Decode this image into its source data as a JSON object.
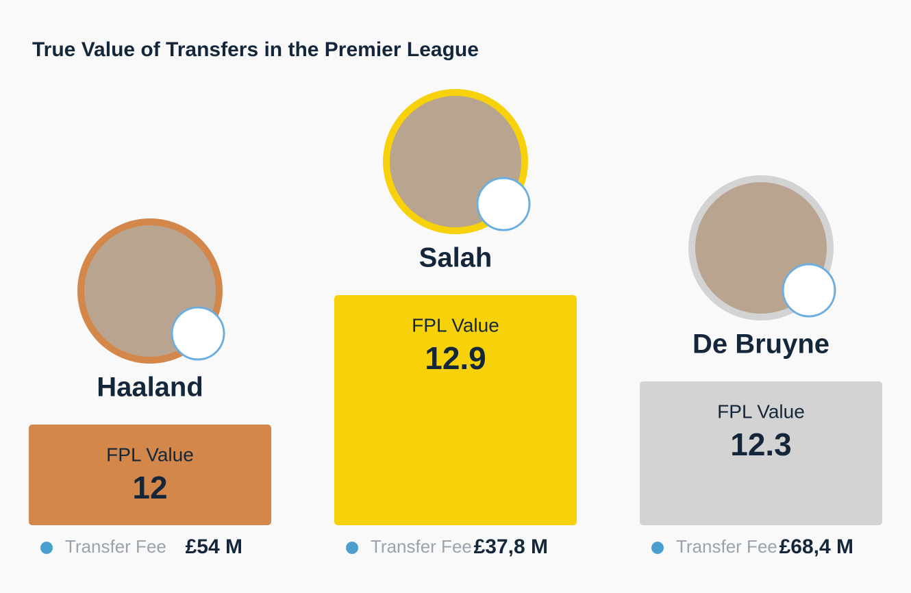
{
  "chart_data": {
    "type": "bar",
    "title": "True Value of Transfers in the Premier League",
    "categories": [
      "Haaland",
      "Salah",
      "De Bruyne"
    ],
    "values": [
      12,
      12.9,
      12.3
    ],
    "colors": [
      "#d4874a",
      "#f7d20a",
      "#d3d3d3"
    ],
    "value_name": "FPL Value",
    "fee_name": "Transfer Fee",
    "fees": [
      "£54 M",
      "£37,8 M",
      "£68,4 M"
    ],
    "ylim": [
      11.3,
      13
    ]
  }
}
